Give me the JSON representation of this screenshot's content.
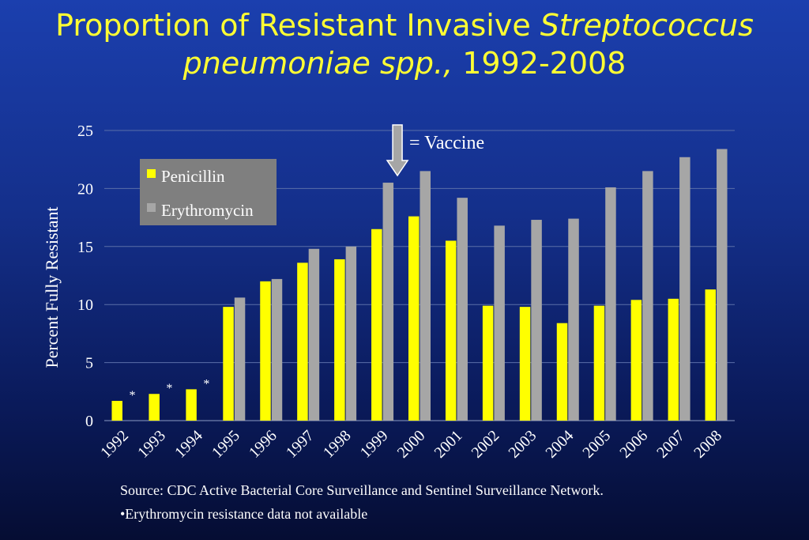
{
  "title": {
    "part1": "Proportion of Resistant Invasive ",
    "italic1": "Streptococcus",
    "italic2": "pneumoniae spp.,",
    "part2": " 1992-2008"
  },
  "chart_data": {
    "type": "bar",
    "categories": [
      "1992",
      "1993",
      "1994",
      "1995",
      "1996",
      "1997",
      "1998",
      "1999",
      "2000",
      "2001",
      "2002",
      "2003",
      "2004",
      "2005",
      "2006",
      "2007",
      "2008"
    ],
    "series": [
      {
        "name": "Penicillin",
        "color": "#ffff00",
        "values": [
          1.7,
          2.3,
          2.7,
          9.8,
          12.0,
          13.6,
          13.9,
          16.5,
          17.6,
          15.5,
          9.9,
          9.8,
          8.4,
          9.9,
          10.4,
          10.5,
          11.3
        ]
      },
      {
        "name": "Erythromycin",
        "color": "#a6a6a6",
        "values": [
          null,
          null,
          null,
          10.6,
          12.2,
          14.8,
          15.0,
          20.5,
          21.5,
          19.2,
          16.8,
          17.3,
          17.4,
          20.1,
          21.5,
          22.7,
          23.4
        ]
      }
    ],
    "ylabel": "Percent  Fully Resistant",
    "ylim": [
      0,
      25
    ],
    "yticks": [
      0,
      5,
      10,
      15,
      20,
      25
    ],
    "grid": true,
    "legend_position": "top-left",
    "annotations": {
      "asterisk": "*",
      "asterisk_years": [
        "1992",
        "1993",
        "1994"
      ],
      "vaccine_label": "= Vaccine",
      "vaccine_year": "1999"
    }
  },
  "footer": {
    "source": "Source: CDC Active Bacterial Core Surveillance and Sentinel Surveillance Network.",
    "note": "•Erythromycin resistance data not available"
  }
}
